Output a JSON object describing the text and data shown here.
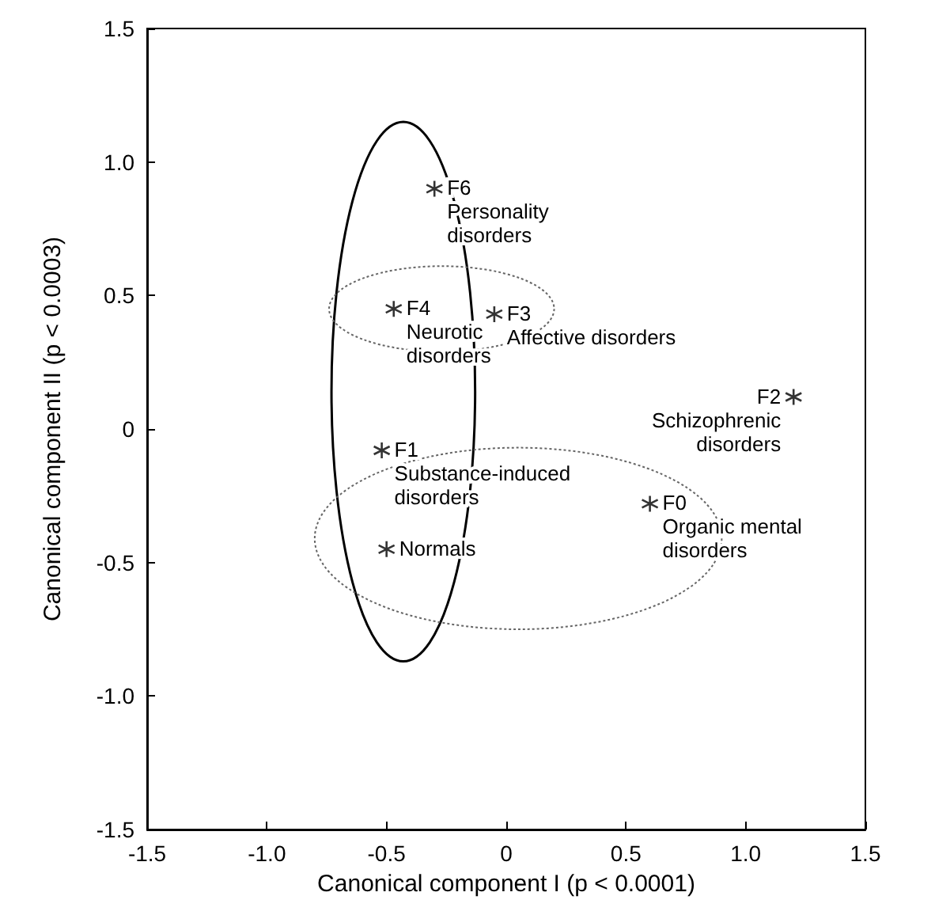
{
  "chart_data": {
    "type": "scatter",
    "xlabel": "Canonical component I (p < 0.0001)",
    "ylabel": "Canonical component II (p < 0.0003)",
    "x": [
      -0.3,
      -0.47,
      -0.05,
      -0.52,
      -0.5,
      0.6,
      1.2
    ],
    "values": [
      0.9,
      0.45,
      0.43,
      -0.08,
      -0.45,
      -0.28,
      0.12
    ],
    "color": "#000000",
    "marker": "cross",
    "xlim": [
      -1.5,
      1.5
    ],
    "xticks": [
      {
        "value": -1.5,
        "label": "-1.5"
      },
      {
        "value": -1,
        "label": "-1.0"
      },
      -0.5,
      0,
      0.5,
      {
        "value": 1,
        "label": "1.0"
      },
      1.5
    ],
    "ylim": [
      -1.5,
      1.5
    ],
    "yticks": [
      {
        "value": -1.5,
        "label": "-1.5"
      },
      {
        "value": -1,
        "label": "-1.0"
      },
      -0.5,
      0,
      0.5,
      {
        "value": 1,
        "label": "1.0"
      },
      1.5
    ],
    "annotations": [
      {
        "text": "F6\nPersonality\ndisorders",
        "x": -0.3,
        "y": 0.9
      },
      {
        "text": "F4\nNeurotic\ndisorders",
        "x": -0.47,
        "y": 0.45
      },
      {
        "text": "F3\nAffective disorders",
        "x": -0.05,
        "y": 0.43
      },
      {
        "text": "F1\nSubstance-induced\ndisorders",
        "x": -0.52,
        "y": -0.08
      },
      {
        "text": "Normals",
        "x": -0.5,
        "y": -0.45
      },
      {
        "text": "F0\nOrganic mental\ndisorders",
        "x": 0.6,
        "y": -0.28
      },
      {
        "text": "F2\nSchizophrenic\ndisorders",
        "x": 1.2,
        "y": 0.12
      }
    ]
  }
}
